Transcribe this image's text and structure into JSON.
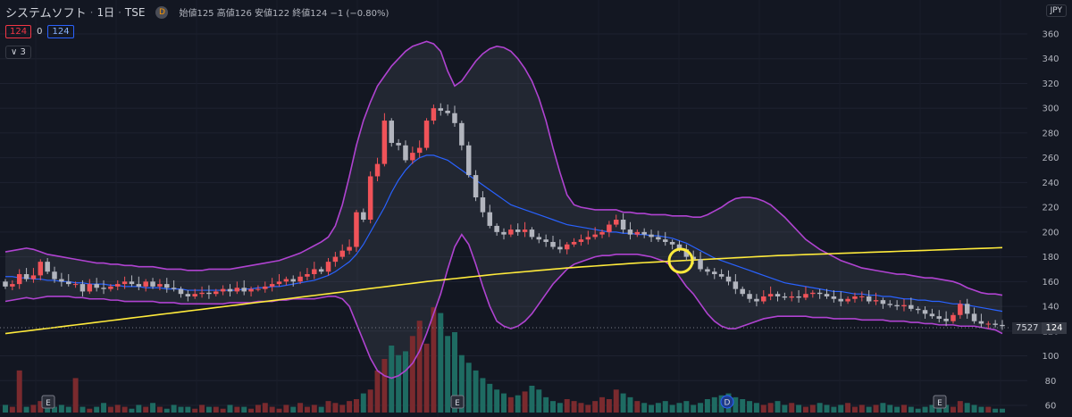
{
  "header": {
    "symbol": "システムソフト",
    "interval": "1日",
    "exchange": "TSE",
    "badge": "D",
    "ohlc": "始値125  高値126  安値122  終値124  −1 (−0.80%)"
  },
  "buttons": {
    "sell": "124",
    "spread": "0",
    "buy": "124",
    "indicators": "∨ 3"
  },
  "currency": "JPY",
  "price_label": {
    "volume": "7527",
    "price": "124"
  },
  "colors": {
    "up": "#f05359",
    "down": "#b2b5be",
    "bb": "#b043d1",
    "ma": "#2962ff",
    "long_ma": "#ffeb3b",
    "vol_up": "#7a2a2e",
    "vol_down": "#1e6b62"
  },
  "chart_data": {
    "type": "candlestick",
    "y_axis": {
      "ticks": [
        60,
        80,
        100,
        120,
        140,
        160,
        180,
        200,
        220,
        240,
        260,
        280,
        300,
        320,
        340,
        360
      ],
      "range": [
        56,
        370
      ]
    },
    "open": [
      160,
      156,
      158,
      166,
      162,
      165,
      176,
      168,
      162,
      160,
      158,
      158,
      152,
      158,
      155,
      154,
      156,
      158,
      160,
      158,
      156,
      160,
      156,
      158,
      155,
      154,
      150,
      148,
      150,
      151,
      150,
      152,
      154,
      152,
      155,
      152,
      154,
      154,
      156,
      158,
      160,
      162,
      160,
      164,
      166,
      170,
      168,
      176,
      180,
      185,
      188,
      216,
      210,
      245,
      255,
      290,
      272,
      270,
      258,
      264,
      268,
      290,
      300,
      298,
      296,
      288,
      270,
      246,
      228,
      216,
      205,
      200,
      198,
      202,
      200,
      202,
      196,
      194,
      192,
      188,
      186,
      190,
      192,
      194,
      196,
      198,
      200,
      206,
      210,
      202,
      198,
      200,
      198,
      196,
      194,
      192,
      190,
      186,
      180,
      178,
      170,
      168,
      166,
      164,
      160,
      154,
      150,
      146,
      144,
      148,
      150,
      148,
      147,
      148,
      147,
      150,
      151,
      150,
      148,
      146,
      144,
      146,
      148,
      148,
      144,
      145,
      142,
      141,
      140,
      141,
      138,
      137,
      134,
      132,
      130,
      128,
      133,
      142,
      134,
      128,
      126,
      126,
      125
    ],
    "close": [
      156,
      158,
      166,
      162,
      165,
      176,
      168,
      162,
      160,
      158,
      158,
      152,
      158,
      155,
      154,
      156,
      158,
      160,
      158,
      156,
      160,
      156,
      158,
      155,
      154,
      150,
      148,
      150,
      151,
      150,
      152,
      154,
      152,
      155,
      152,
      154,
      154,
      156,
      158,
      160,
      162,
      160,
      164,
      166,
      170,
      168,
      176,
      180,
      185,
      188,
      216,
      210,
      245,
      255,
      290,
      272,
      270,
      258,
      264,
      268,
      290,
      300,
      298,
      296,
      288,
      270,
      246,
      228,
      216,
      205,
      200,
      198,
      202,
      200,
      202,
      196,
      194,
      192,
      188,
      186,
      190,
      192,
      194,
      196,
      198,
      200,
      206,
      210,
      202,
      198,
      200,
      198,
      196,
      194,
      192,
      190,
      186,
      180,
      178,
      170,
      168,
      166,
      164,
      160,
      154,
      150,
      146,
      144,
      148,
      150,
      148,
      147,
      148,
      147,
      150,
      151,
      150,
      148,
      146,
      144,
      146,
      148,
      148,
      144,
      145,
      142,
      141,
      140,
      141,
      138,
      137,
      134,
      132,
      130,
      128,
      133,
      142,
      134,
      128,
      126,
      126,
      125,
      124
    ],
    "bb_upper": [
      184,
      185,
      186,
      187,
      186,
      184,
      182,
      181,
      180,
      179,
      178,
      177,
      176,
      175,
      175,
      174,
      174,
      173,
      173,
      172,
      172,
      172,
      171,
      170,
      170,
      170,
      169,
      169,
      169,
      170,
      170,
      170,
      170,
      171,
      172,
      173,
      174,
      175,
      176,
      177,
      179,
      181,
      183,
      186,
      189,
      192,
      196,
      205,
      222,
      245,
      270,
      290,
      305,
      318,
      326,
      334,
      340,
      346,
      350,
      352,
      354,
      352,
      346,
      330,
      318,
      322,
      330,
      338,
      344,
      348,
      350,
      349,
      346,
      340,
      332,
      322,
      308,
      290,
      268,
      248,
      230,
      222,
      220,
      219,
      218,
      218,
      218,
      218,
      216,
      216,
      215,
      215,
      214,
      214,
      214,
      213,
      213,
      213,
      212,
      212,
      214,
      217,
      220,
      224,
      227,
      228,
      228,
      227,
      225,
      222,
      217,
      212,
      206,
      200,
      194,
      190,
      186,
      183,
      180,
      177,
      175,
      173,
      171,
      170,
      169,
      168,
      167,
      166,
      166,
      165,
      164,
      163,
      163,
      162,
      161,
      160,
      158,
      155,
      153,
      151,
      150,
      150,
      149
    ],
    "bb_lower": [
      144,
      145,
      146,
      147,
      146,
      147,
      148,
      148,
      148,
      148,
      147,
      147,
      146,
      146,
      146,
      145,
      145,
      144,
      144,
      144,
      144,
      144,
      143,
      143,
      143,
      142,
      142,
      142,
      142,
      142,
      142,
      142,
      143,
      143,
      143,
      143,
      144,
      144,
      144,
      145,
      145,
      146,
      146,
      146,
      146,
      147,
      148,
      148,
      146,
      140,
      126,
      112,
      98,
      88,
      84,
      82,
      84,
      88,
      94,
      104,
      118,
      134,
      150,
      170,
      188,
      198,
      190,
      174,
      156,
      140,
      128,
      124,
      122,
      124,
      128,
      134,
      142,
      150,
      158,
      164,
      170,
      174,
      176,
      178,
      180,
      181,
      181,
      182,
      182,
      182,
      182,
      181,
      180,
      178,
      176,
      172,
      164,
      156,
      150,
      142,
      134,
      128,
      124,
      122,
      122,
      124,
      126,
      128,
      130,
      131,
      132,
      132,
      132,
      132,
      132,
      131,
      131,
      131,
      130,
      130,
      130,
      130,
      129,
      129,
      129,
      129,
      128,
      128,
      128,
      127,
      127,
      126,
      126,
      125,
      125,
      125,
      124,
      124,
      124,
      123,
      122,
      121,
      118
    ],
    "ma": [
      164,
      164,
      163,
      163,
      162,
      162,
      161,
      161,
      160,
      160,
      159,
      159,
      158,
      158,
      158,
      157,
      157,
      156,
      156,
      156,
      155,
      155,
      155,
      154,
      154,
      154,
      153,
      153,
      153,
      153,
      153,
      153,
      153,
      153,
      154,
      154,
      155,
      155,
      156,
      156,
      157,
      158,
      159,
      160,
      161,
      163,
      165,
      168,
      172,
      176,
      182,
      190,
      200,
      210,
      220,
      232,
      242,
      250,
      256,
      260,
      262,
      262,
      260,
      258,
      254,
      250,
      246,
      242,
      238,
      234,
      230,
      226,
      222,
      220,
      218,
      216,
      214,
      212,
      210,
      208,
      206,
      205,
      204,
      203,
      202,
      201,
      200,
      200,
      199,
      199,
      198,
      198,
      197,
      197,
      196,
      195,
      193,
      191,
      188,
      185,
      182,
      179,
      177,
      175,
      173,
      171,
      169,
      167,
      165,
      163,
      161,
      159,
      158,
      157,
      156,
      155,
      154,
      153,
      152,
      152,
      151,
      150,
      150,
      149,
      149,
      148,
      148,
      147,
      146,
      146,
      145,
      145,
      144,
      144,
      143,
      142,
      142,
      141,
      140,
      139,
      138,
      137,
      136
    ],
    "long_ma": [
      118,
      118.7,
      119.4,
      120.1,
      120.8,
      121.5,
      122.2,
      122.9,
      123.6,
      124.3,
      125,
      125.7,
      126.4,
      127.1,
      127.8,
      128.5,
      129.2,
      129.9,
      130.6,
      131.3,
      132,
      132.7,
      133.4,
      134.1,
      134.8,
      135.5,
      136.2,
      136.9,
      137.6,
      138.3,
      139,
      139.7,
      140.4,
      141.1,
      141.8,
      142.5,
      143.2,
      143.9,
      144.6,
      145.3,
      146,
      146.7,
      147.4,
      148.1,
      148.8,
      149.5,
      150.2,
      150.9,
      151.6,
      152.3,
      153,
      153.7,
      154.4,
      155.1,
      155.8,
      156.5,
      157.2,
      157.9,
      158.6,
      159.3,
      160,
      160.6,
      161.2,
      161.8,
      162.4,
      163,
      163.6,
      164.2,
      164.8,
      165.4,
      166,
      166.5,
      167,
      167.5,
      168,
      168.5,
      169,
      169.5,
      170,
      170.5,
      171,
      171.4,
      171.8,
      172.2,
      172.6,
      173,
      173.4,
      173.8,
      174.2,
      174.6,
      175,
      175.3,
      175.6,
      175.9,
      176.2,
      176.5,
      176.8,
      177.1,
      177.4,
      177.7,
      178,
      178.3,
      178.6,
      178.9,
      179.2,
      179.5,
      179.8,
      180.1,
      180.4,
      180.7,
      181,
      181.2,
      181.4,
      181.6,
      181.8,
      182,
      182.2,
      182.4,
      182.6,
      182.8,
      183,
      183.2,
      183.4,
      183.6,
      183.8,
      184,
      184.2,
      184.4,
      184.6,
      184.8,
      185,
      185.2,
      185.4,
      185.6,
      185.8,
      186,
      186.2,
      186.4,
      186.6,
      186.8,
      187,
      187.2,
      187.4
    ],
    "volume": [
      4,
      3,
      22,
      3,
      4,
      6,
      3,
      3,
      4,
      3,
      18,
      3,
      2,
      3,
      5,
      3,
      4,
      3,
      2,
      4,
      3,
      5,
      3,
      2,
      4,
      3,
      3,
      2,
      4,
      3,
      3,
      2,
      4,
      3,
      3,
      2,
      4,
      5,
      3,
      2,
      4,
      3,
      5,
      3,
      4,
      3,
      6,
      5,
      4,
      6,
      7,
      10,
      12,
      22,
      28,
      35,
      30,
      32,
      40,
      48,
      36,
      55,
      52,
      40,
      42,
      30,
      26,
      22,
      18,
      15,
      12,
      10,
      8,
      9,
      11,
      14,
      12,
      8,
      6,
      5,
      7,
      6,
      5,
      4,
      6,
      8,
      7,
      12,
      10,
      8,
      6,
      5,
      4,
      5,
      6,
      4,
      5,
      6,
      4,
      5,
      7,
      8,
      9,
      10,
      8,
      7,
      6,
      5,
      4,
      5,
      6,
      4,
      5,
      4,
      3,
      4,
      5,
      4,
      3,
      4,
      5,
      3,
      4,
      3,
      4,
      5,
      4,
      3,
      4,
      3,
      2,
      3,
      4,
      3,
      4,
      3,
      6,
      5,
      4,
      3,
      3,
      2,
      2
    ],
    "annotations": {
      "earnings_markers": [
        "E",
        "E",
        "E"
      ],
      "dividend_marker": "D"
    }
  }
}
